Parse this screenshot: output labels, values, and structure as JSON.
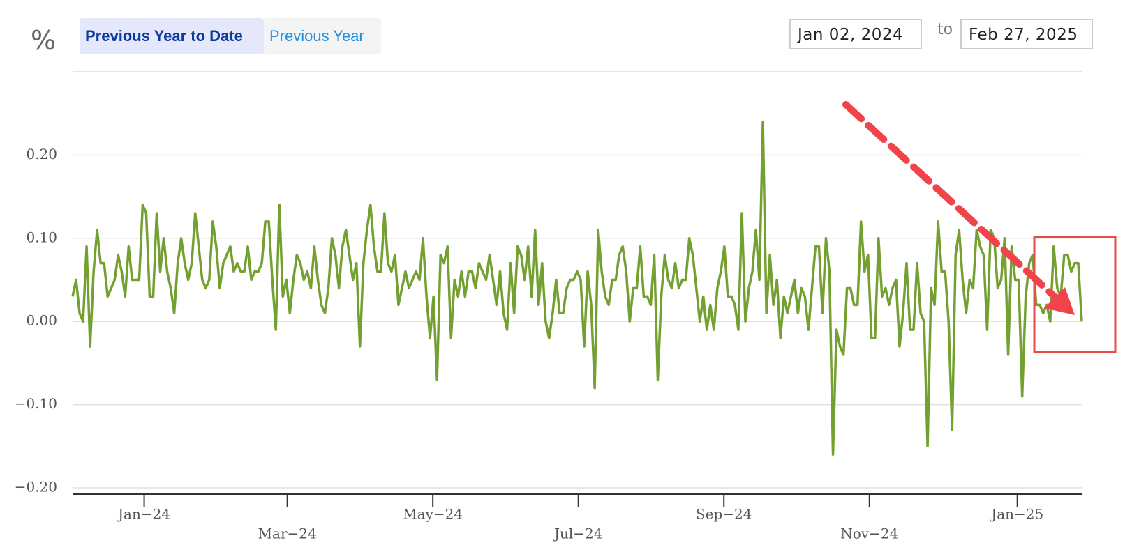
{
  "controls": {
    "buttons": [
      "Previous Year to Date",
      "Previous Year"
    ],
    "start_date": "Jan 02, 2024",
    "to": "to",
    "end_date": "Feb 27, 2025"
  },
  "chart_data": {
    "type": "line",
    "y_label": "%",
    "color": "#74a031",
    "grid": true,
    "xlim": [
      "2024-01-01",
      "2025-02-27"
    ],
    "xticks": [
      {
        "value": "2024-01-31",
        "label": "Jan−24"
      },
      {
        "value": "2024-03-31",
        "label": "Mar−24"
      },
      {
        "value": "2024-05-31",
        "label": "May−24"
      },
      {
        "value": "2024-07-31",
        "label": "Jul−24"
      },
      {
        "value": "2024-09-30",
        "label": "Sep−24"
      },
      {
        "value": "2024-11-30",
        "label": "Nov−24"
      },
      {
        "value": "2025-01-31",
        "label": "Jan−25"
      }
    ],
    "ylim": [
      -0.2,
      0.3
    ],
    "yticks": [
      {
        "value": -0.2,
        "label": "−0.20"
      },
      {
        "value": -0.1,
        "label": "−0.10"
      },
      {
        "value": 0,
        "label": "0.00"
      },
      {
        "value": 0.1,
        "label": "0.10"
      },
      {
        "value": 0.2,
        "label": "0.20"
      }
    ],
    "values": [
      0.03,
      0.05,
      0.01,
      0.0,
      0.09,
      -0.03,
      0.06,
      0.11,
      0.07,
      0.07,
      0.03,
      0.04,
      0.05,
      0.08,
      0.06,
      0.03,
      0.09,
      0.05,
      0.05,
      0.05,
      0.14,
      0.13,
      0.03,
      0.03,
      0.13,
      0.06,
      0.1,
      0.06,
      0.04,
      0.01,
      0.07,
      0.1,
      0.07,
      0.05,
      0.07,
      0.13,
      0.09,
      0.05,
      0.04,
      0.05,
      0.12,
      0.09,
      0.04,
      0.07,
      0.08,
      0.09,
      0.06,
      0.07,
      0.06,
      0.06,
      0.09,
      0.05,
      0.06,
      0.06,
      0.07,
      0.12,
      0.12,
      0.05,
      -0.01,
      0.14,
      0.03,
      0.05,
      0.01,
      0.05,
      0.08,
      0.07,
      0.05,
      0.06,
      0.04,
      0.09,
      0.05,
      0.02,
      0.01,
      0.04,
      0.1,
      0.08,
      0.04,
      0.09,
      0.11,
      0.08,
      0.05,
      0.07,
      -0.03,
      0.07,
      0.11,
      0.14,
      0.09,
      0.06,
      0.06,
      0.13,
      0.07,
      0.06,
      0.08,
      0.02,
      0.04,
      0.06,
      0.04,
      0.05,
      0.06,
      0.05,
      0.1,
      0.03,
      -0.02,
      0.03,
      -0.07,
      0.08,
      0.07,
      0.09,
      -0.02,
      0.05,
      0.03,
      0.06,
      0.03,
      0.06,
      0.06,
      0.04,
      0.07,
      0.06,
      0.05,
      0.08,
      0.05,
      0.02,
      0.06,
      0.01,
      -0.01,
      0.07,
      0.01,
      0.09,
      0.08,
      0.05,
      0.09,
      0.03,
      0.11,
      0.02,
      0.07,
      0.0,
      -0.02,
      0.01,
      0.05,
      0.01,
      0.01,
      0.04,
      0.05,
      0.05,
      0.06,
      0.05,
      -0.03,
      0.06,
      0.02,
      -0.08,
      0.11,
      0.06,
      0.03,
      0.02,
      0.05,
      0.05,
      0.08,
      0.09,
      0.06,
      0.0,
      0.04,
      0.04,
      0.09,
      0.03,
      0.03,
      0.02,
      0.08,
      -0.07,
      0.03,
      0.08,
      0.05,
      0.04,
      0.07,
      0.04,
      0.05,
      0.05,
      0.1,
      0.08,
      0.04,
      0.0,
      0.03,
      -0.01,
      0.02,
      -0.01,
      0.04,
      0.06,
      0.09,
      0.03,
      0.03,
      0.02,
      -0.01,
      0.13,
      0.0,
      0.04,
      0.06,
      0.11,
      0.05,
      0.24,
      0.01,
      0.08,
      0.02,
      0.05,
      -0.02,
      0.03,
      0.01,
      0.03,
      0.05,
      0.01,
      0.04,
      0.03,
      -0.01,
      0.04,
      0.09,
      0.09,
      0.01,
      0.1,
      0.06,
      -0.16,
      -0.01,
      -0.03,
      -0.04,
      0.04,
      0.04,
      0.02,
      0.02,
      0.12,
      0.06,
      0.08,
      -0.02,
      -0.02,
      0.1,
      0.03,
      0.04,
      0.02,
      0.04,
      0.05,
      -0.03,
      0.01,
      0.07,
      -0.01,
      -0.01,
      0.07,
      0.01,
      0.0,
      -0.15,
      0.04,
      0.02,
      0.12,
      0.06,
      0.06,
      0.0,
      -0.13,
      0.08,
      0.11,
      0.05,
      0.01,
      0.05,
      0.04,
      0.11,
      0.09,
      0.08,
      -0.01,
      0.11,
      0.1,
      0.04,
      0.05,
      0.1,
      -0.04,
      0.09,
      0.05,
      0.05,
      -0.09,
      0.03,
      0.07,
      0.08,
      0.02,
      0.02,
      0.01,
      0.02,
      0.0,
      0.09,
      0.04,
      0.03,
      0.08,
      0.08,
      0.06,
      0.07,
      0.07,
      0.0
    ]
  }
}
